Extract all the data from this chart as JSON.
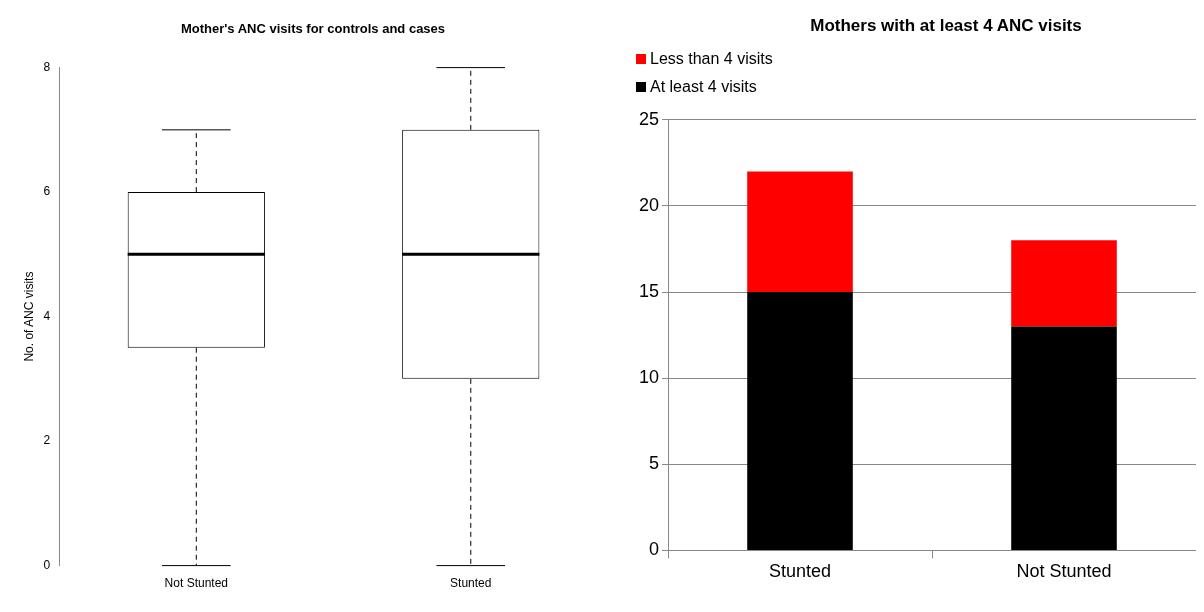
{
  "chart_data": [
    {
      "type": "box",
      "title": "Mother's ANC visits for controls and cases",
      "ylabel": "No. of ANC visits",
      "categories": [
        "Not Stunted",
        "Stunted"
      ],
      "boxes": [
        {
          "low": 0,
          "q1": 3.5,
          "median": 5,
          "q3": 6,
          "high": 7
        },
        {
          "low": 0,
          "q1": 3,
          "median": 5,
          "q3": 7,
          "high": 8
        }
      ],
      "ylim": [
        0,
        8
      ],
      "yticks": [
        0,
        2,
        4,
        6,
        8
      ]
    },
    {
      "type": "bar",
      "title": "Mothers with at least 4 ANC visits",
      "categories": [
        "Stunted",
        "Not Stunted"
      ],
      "stacked": true,
      "series": [
        {
          "name": "At least 4 visits",
          "color": "#000000",
          "values": [
            15,
            13
          ]
        },
        {
          "name": "Less than 4 visits",
          "color": "#ff0000",
          "values": [
            7,
            5
          ]
        }
      ],
      "ylim": [
        0,
        25
      ],
      "yticks": [
        0,
        5,
        10,
        15,
        20,
        25
      ],
      "grid": "y",
      "legend": "top left"
    }
  ]
}
